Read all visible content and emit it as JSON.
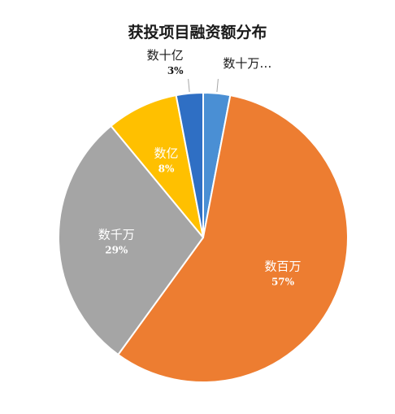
{
  "chart_data": {
    "type": "pie",
    "title": "获投项目融资额分布",
    "slices": [
      {
        "name": "数十万…",
        "value": 3,
        "label": "",
        "color": "#4a8fd4",
        "label_pos": "outside",
        "label_color": "#1a1a1a"
      },
      {
        "name": "数百万",
        "value": 57,
        "label": "57%",
        "color": "#ed7d31",
        "label_pos": "inside",
        "label_color": "#ffffff"
      },
      {
        "name": "数千万",
        "value": 29,
        "label": "29%",
        "color": "#a5a5a5",
        "label_pos": "inside",
        "label_color": "#ffffff"
      },
      {
        "name": "数亿",
        "value": 8,
        "label": "8%",
        "color": "#ffc000",
        "label_pos": "inside",
        "label_color": "#ffffff"
      },
      {
        "name": "数十亿",
        "value": 3,
        "label": "3%",
        "color": "#2f6fc4",
        "label_pos": "outside",
        "label_color": "#1a1a1a"
      }
    ],
    "start_angle_deg": 0,
    "direction": "clockwise",
    "legend": "none"
  }
}
